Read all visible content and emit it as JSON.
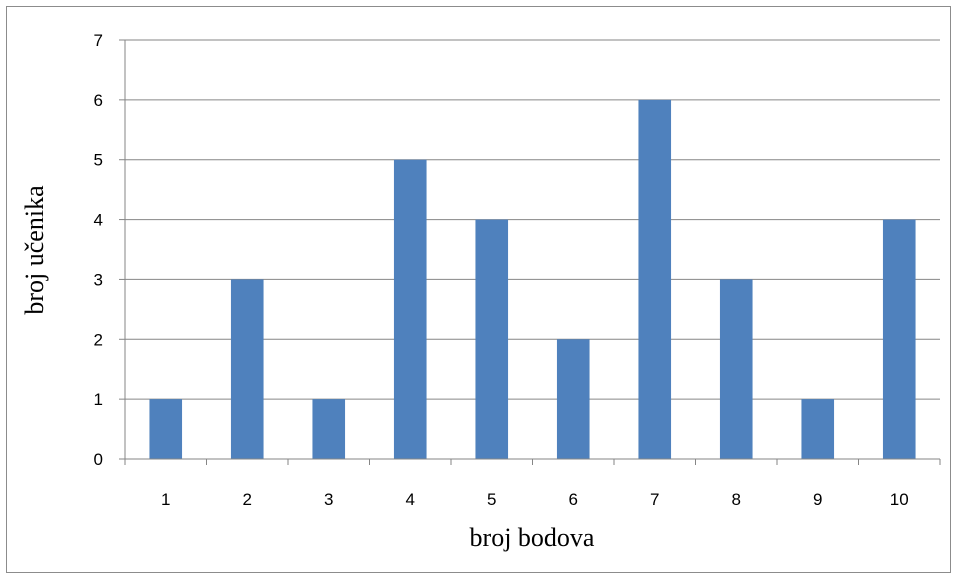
{
  "chart_data": {
    "type": "bar",
    "categories": [
      "1",
      "2",
      "3",
      "4",
      "5",
      "6",
      "7",
      "8",
      "9",
      "10"
    ],
    "values": [
      1,
      3,
      1,
      5,
      4,
      2,
      6,
      3,
      1,
      4
    ],
    "title": "",
    "xlabel": "broj bodova",
    "ylabel": "broj učenika",
    "ylim": [
      0,
      7
    ],
    "yticks": [
      "0",
      "1",
      "2",
      "3",
      "4",
      "5",
      "6",
      "7"
    ],
    "grid": "horizontal",
    "legend": "none",
    "bar_color": "#4f81bd",
    "grid_color": "#868686"
  }
}
